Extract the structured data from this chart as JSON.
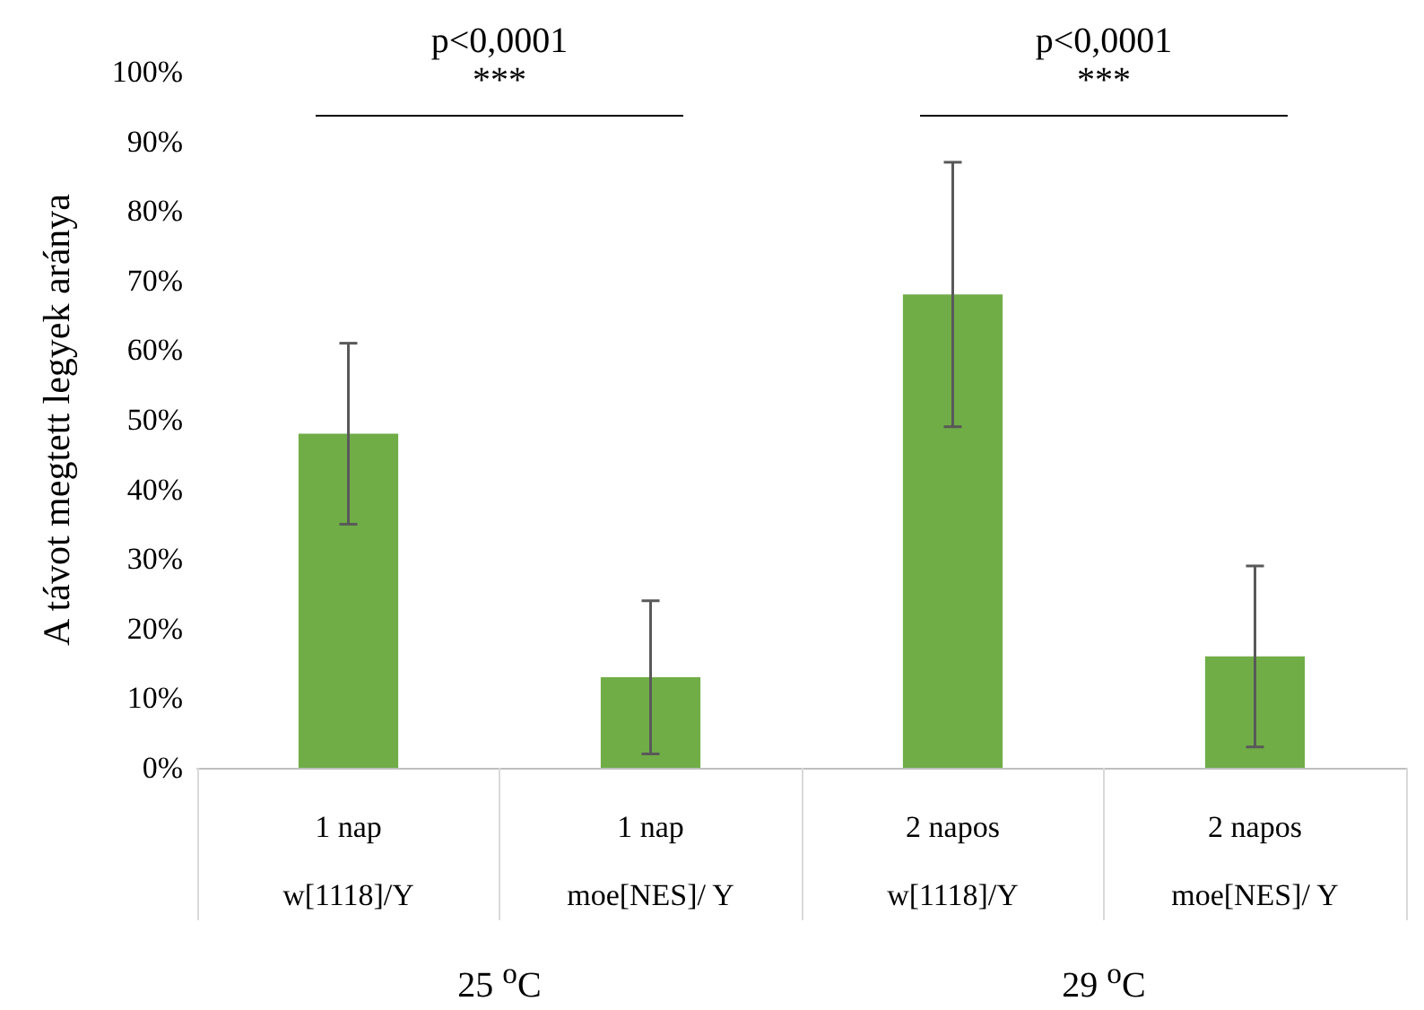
{
  "chart_data": {
    "type": "bar",
    "ylabel": "A távot megtett legyek aránya",
    "categories": [
      "1 nap\nw[1118]/Y",
      "1 nap\nmoe[NES]/ Y",
      "2 napos\nw[1118]/Y",
      "2 napos\nmoe[NES]/ Y"
    ],
    "values": [
      48,
      13,
      68,
      16
    ],
    "color": "#70ad47",
    "errors": [
      [
        35,
        61
      ],
      [
        2,
        24
      ],
      [
        49,
        87
      ],
      [
        3,
        29
      ]
    ],
    "ylim": [
      0,
      100
    ],
    "yticks": [
      {
        "value": 0,
        "label": "0%"
      },
      {
        "value": 10,
        "label": "10%"
      },
      {
        "value": 20,
        "label": "20%"
      },
      {
        "value": 30,
        "label": "30%"
      },
      {
        "value": 40,
        "label": "40%"
      },
      {
        "value": 50,
        "label": "50%"
      },
      {
        "value": 60,
        "label": "60%"
      },
      {
        "value": 70,
        "label": "70%"
      },
      {
        "value": 80,
        "label": "80%"
      },
      {
        "value": 90,
        "label": "90%"
      },
      {
        "value": 100,
        "label": "100%"
      }
    ],
    "annotations": [
      "p<0,0001",
      "***",
      "p<0,0001",
      "***",
      "25 $^{o}$C",
      "29 $^{o}$C"
    ]
  }
}
